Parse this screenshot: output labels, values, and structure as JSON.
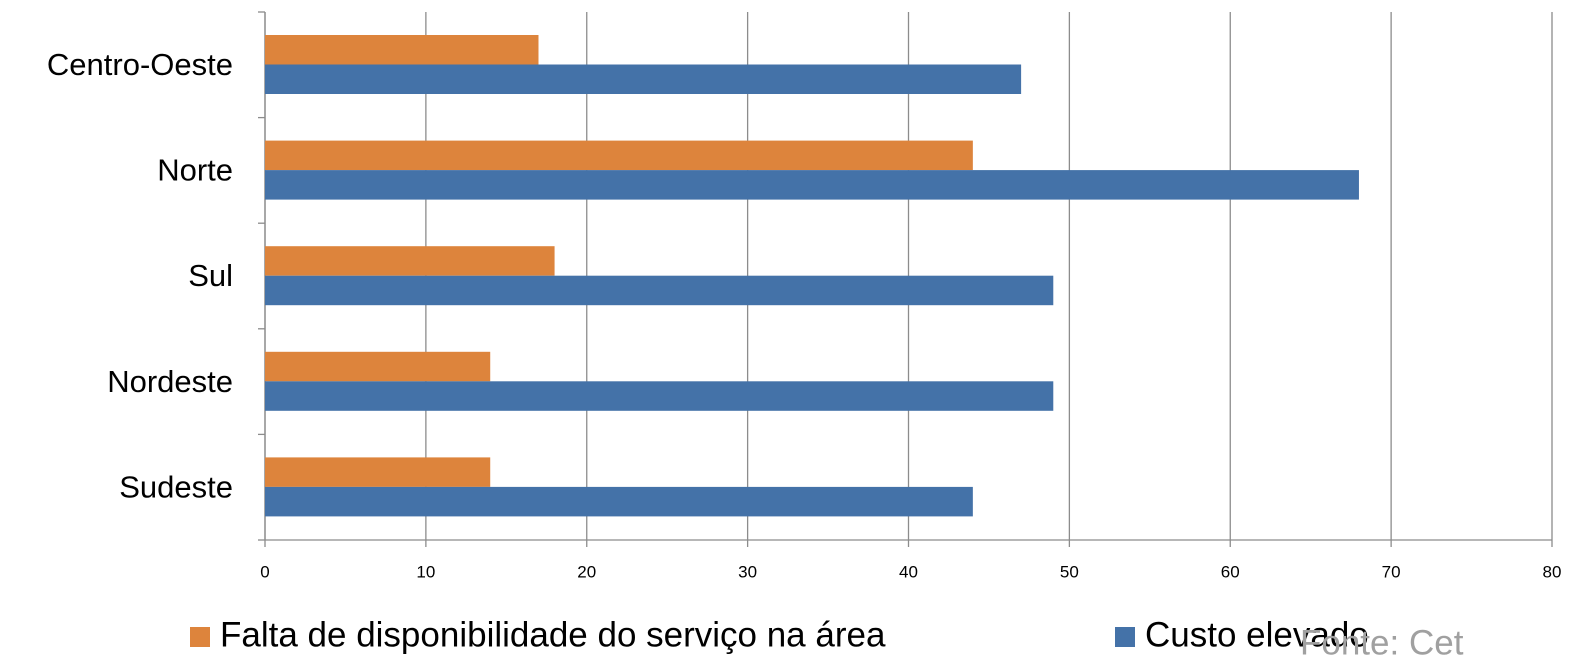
{
  "chart_data": {
    "type": "hbar",
    "categories": [
      "Centro-Oeste",
      "Norte",
      "Sul",
      "Nordeste",
      "Sudeste"
    ],
    "series": [
      {
        "name": "Falta de disponibilidade do serviço na área",
        "color": "#dd843c",
        "values": [
          17,
          44,
          18,
          14,
          14
        ]
      },
      {
        "name": "Custo elevado",
        "color": "#4472a8",
        "values": [
          47,
          68,
          49,
          49,
          44
        ]
      }
    ],
    "xlim": [
      0,
      80
    ],
    "xticks": [
      0,
      10,
      20,
      30,
      40,
      50,
      60,
      70,
      80
    ],
    "grid": true,
    "legend": "bottom",
    "annotation": "Fonte: Cet"
  }
}
